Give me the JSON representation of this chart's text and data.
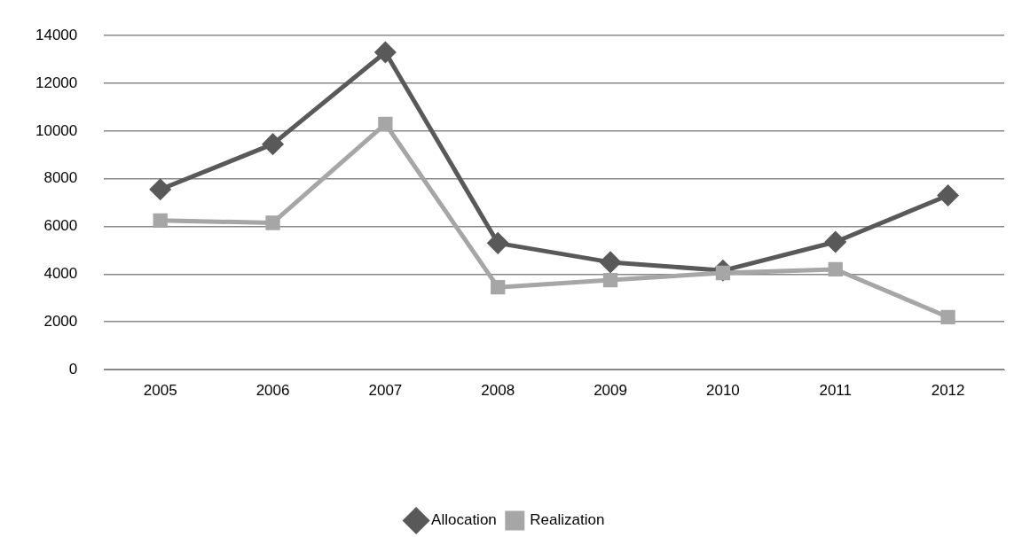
{
  "chart_data": {
    "type": "line",
    "categories": [
      "2005",
      "2006",
      "2007",
      "2008",
      "2009",
      "2010",
      "2011",
      "2012"
    ],
    "series": [
      {
        "name": "Allocation",
        "color": "#595959",
        "marker": "diamond",
        "values": [
          7550,
          9450,
          13300,
          5300,
          4500,
          4150,
          5350,
          7300
        ]
      },
      {
        "name": "Realization",
        "color": "#a6a6a6",
        "marker": "square",
        "values": [
          6250,
          6150,
          10300,
          3450,
          3750,
          4050,
          4200,
          2200
        ]
      }
    ],
    "ylim": [
      0,
      14000
    ],
    "yticks": [
      0,
      2000,
      4000,
      6000,
      8000,
      10000,
      12000,
      14000
    ],
    "grid": "y",
    "legend": "bottom"
  }
}
